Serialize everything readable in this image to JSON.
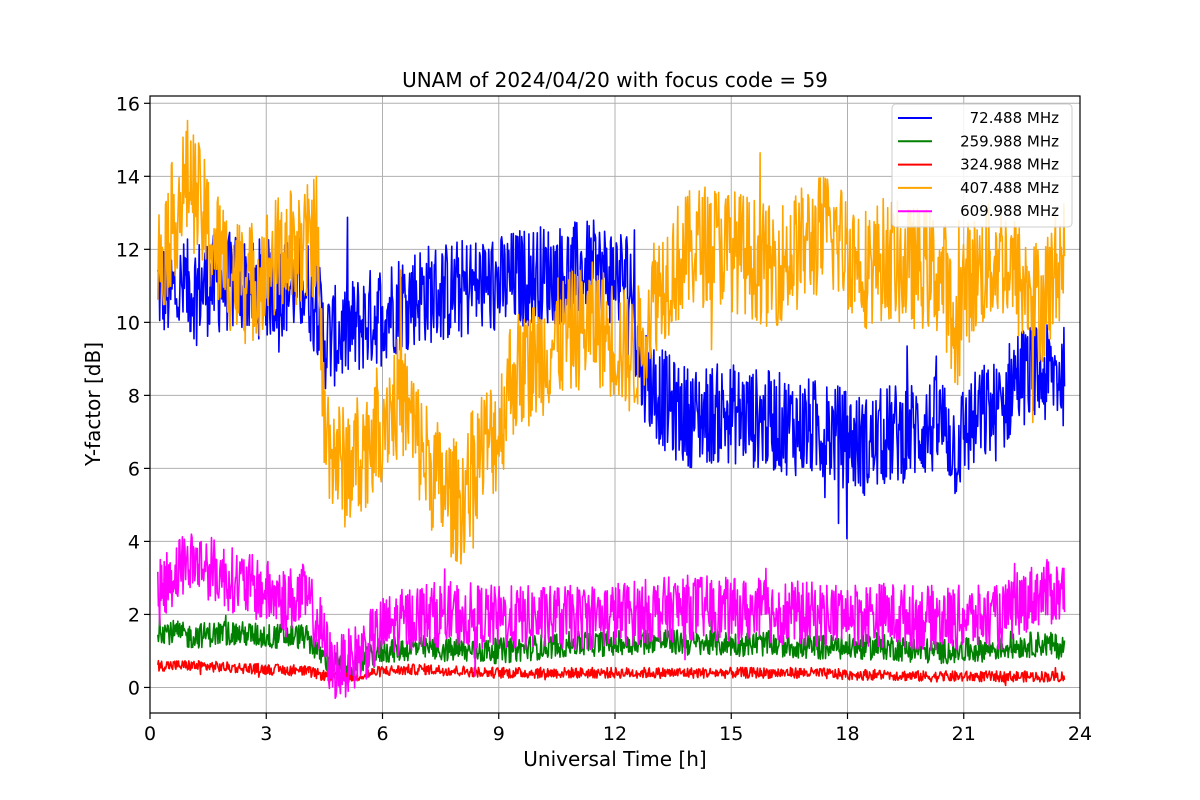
{
  "chart_data": {
    "type": "line",
    "title": "UNAM of 2024/04/20 with focus code = 59",
    "xlabel": "Universal Time [h]",
    "ylabel": "Y-factor [dB]",
    "xlim": [
      0,
      24
    ],
    "ylim": [
      -0.7,
      16.2
    ],
    "xticks": [
      0,
      3,
      6,
      9,
      12,
      15,
      18,
      21,
      24
    ],
    "yticks": [
      0,
      2,
      4,
      6,
      8,
      10,
      12,
      14,
      16
    ],
    "grid": true,
    "legend_position": "top-right",
    "series": [
      {
        "name": "72.488 MHz",
        "color": "#0000ff",
        "x": [
          0.2,
          0.5,
          1.0,
          1.5,
          2.0,
          2.5,
          3.0,
          3.5,
          4.0,
          4.3,
          4.5,
          5.0,
          5.5,
          6.0,
          6.5,
          7.0,
          7.5,
          8.0,
          8.5,
          9.0,
          9.5,
          10.0,
          10.5,
          11.0,
          11.5,
          12.0,
          12.4,
          12.6,
          13.0,
          13.5,
          14.0,
          14.5,
          15.0,
          15.5,
          16.0,
          16.5,
          17.0,
          17.5,
          18.0,
          18.5,
          19.0,
          19.5,
          20.0,
          20.5,
          20.8,
          21.0,
          21.5,
          22.0,
          22.3,
          22.6,
          23.0,
          23.5,
          23.6
        ],
        "y": [
          11.0,
          10.8,
          10.9,
          11.0,
          11.1,
          11.0,
          10.9,
          11.0,
          11.0,
          10.6,
          9.5,
          9.7,
          10.0,
          10.3,
          10.6,
          10.8,
          10.8,
          10.9,
          11.0,
          11.0,
          11.2,
          11.3,
          11.3,
          11.4,
          11.4,
          11.3,
          11.2,
          9.0,
          8.2,
          7.6,
          7.4,
          7.5,
          7.5,
          7.4,
          7.3,
          7.2,
          7.1,
          7.0,
          6.8,
          6.6,
          6.9,
          7.0,
          7.1,
          7.2,
          6.5,
          7.0,
          7.5,
          7.6,
          8.5,
          8.6,
          8.5,
          8.6,
          8.5
        ],
        "amp": 1.4
      },
      {
        "name": "259.988 MHz",
        "color": "#008000",
        "x": [
          0.2,
          1.0,
          2.0,
          3.0,
          4.0,
          4.5,
          5.0,
          5.5,
          6.0,
          7.0,
          8.0,
          9.0,
          10.0,
          11.0,
          12.0,
          13.0,
          14.0,
          15.0,
          16.0,
          17.0,
          18.0,
          19.0,
          20.0,
          21.0,
          22.0,
          23.0,
          23.6
        ],
        "y": [
          1.6,
          1.4,
          1.5,
          1.4,
          1.4,
          0.8,
          0.5,
          0.7,
          1.0,
          1.1,
          1.0,
          1.0,
          1.1,
          1.2,
          1.2,
          1.3,
          1.2,
          1.2,
          1.2,
          1.1,
          1.1,
          1.1,
          1.0,
          1.0,
          1.1,
          1.2,
          1.1
        ],
        "amp": 0.35
      },
      {
        "name": "324.988 MHz",
        "color": "#ff0000",
        "x": [
          0.2,
          1.0,
          2.0,
          3.0,
          4.0,
          4.6,
          5.0,
          6.0,
          7.0,
          8.0,
          9.0,
          10.0,
          11.0,
          12.0,
          13.0,
          14.0,
          15.0,
          16.0,
          17.0,
          18.0,
          19.0,
          20.0,
          21.0,
          22.0,
          23.0,
          23.6
        ],
        "y": [
          0.6,
          0.6,
          0.55,
          0.5,
          0.45,
          0.3,
          0.25,
          0.45,
          0.5,
          0.45,
          0.4,
          0.4,
          0.4,
          0.4,
          0.4,
          0.4,
          0.4,
          0.4,
          0.4,
          0.35,
          0.35,
          0.3,
          0.3,
          0.3,
          0.3,
          0.3
        ],
        "amp": 0.15
      },
      {
        "name": "407.488 MHz",
        "color": "#ffa500",
        "x": [
          0.2,
          0.5,
          1.0,
          1.5,
          2.0,
          2.5,
          3.0,
          3.5,
          4.0,
          4.3,
          4.5,
          5.0,
          5.5,
          6.0,
          6.5,
          7.0,
          7.5,
          8.0,
          8.5,
          9.0,
          9.3,
          10.0,
          10.5,
          11.0,
          11.5,
          12.0,
          12.5,
          13.0,
          13.5,
          14.0,
          14.5,
          15.0,
          15.5,
          16.0,
          16.5,
          17.0,
          17.5,
          18.0,
          18.5,
          19.0,
          19.5,
          20.0,
          20.5,
          20.8,
          21.0,
          21.5,
          22.0,
          22.5,
          23.0,
          23.6
        ],
        "y": [
          11.5,
          12.5,
          14.0,
          12.5,
          11.5,
          11.0,
          11.5,
          12.0,
          12.0,
          12.5,
          7.0,
          6.0,
          6.5,
          7.5,
          8.0,
          6.5,
          5.5,
          5.0,
          6.5,
          7.0,
          8.5,
          9.0,
          9.5,
          9.8,
          10.0,
          9.5,
          9.0,
          10.8,
          11.5,
          12.0,
          12.2,
          12.0,
          11.8,
          11.5,
          11.8,
          12.2,
          12.5,
          12.0,
          11.5,
          11.8,
          11.5,
          11.5,
          11.2,
          9.5,
          11.0,
          11.5,
          11.8,
          11.0,
          10.5,
          12.0
        ],
        "amp": 1.7
      },
      {
        "name": "609.988 MHz",
        "color": "#ff00ff",
        "x": [
          0.2,
          0.5,
          1.0,
          1.5,
          2.0,
          2.5,
          3.0,
          3.5,
          4.0,
          4.4,
          4.7,
          5.0,
          5.5,
          6.0,
          6.5,
          7.0,
          8.0,
          9.0,
          10.0,
          11.0,
          12.0,
          13.0,
          14.0,
          15.0,
          16.0,
          17.0,
          18.0,
          19.0,
          20.0,
          21.0,
          22.0,
          22.4,
          23.0,
          23.6
        ],
        "y": [
          2.5,
          3.0,
          3.5,
          3.3,
          3.0,
          2.8,
          2.6,
          2.4,
          2.5,
          1.6,
          0.5,
          0.6,
          1.0,
          1.6,
          1.8,
          2.0,
          2.0,
          1.9,
          1.9,
          1.9,
          2.0,
          2.1,
          2.2,
          2.1,
          2.1,
          2.0,
          2.0,
          2.0,
          1.9,
          1.9,
          1.9,
          2.3,
          2.6,
          2.6
        ],
        "amp": 0.9
      }
    ]
  }
}
